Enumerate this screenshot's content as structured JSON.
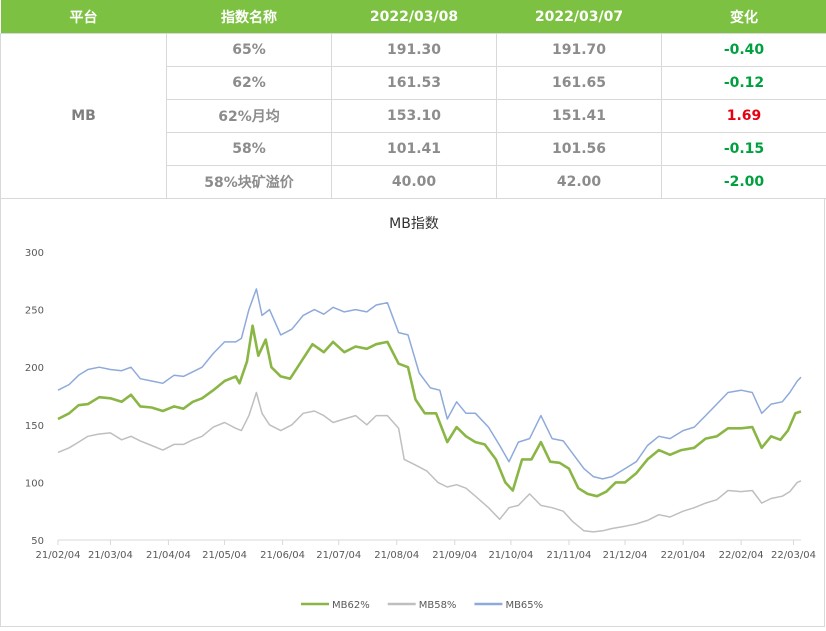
{
  "table": {
    "headers": [
      "平台",
      "指数名称",
      "2022/03/08",
      "2022/03/07",
      "变化"
    ],
    "platform": "MB",
    "rows": [
      {
        "name": "65%",
        "v1": "191.30",
        "v2": "191.70",
        "change": "-0.40",
        "sign": "neg"
      },
      {
        "name": "62%",
        "v1": "161.53",
        "v2": "161.65",
        "change": "-0.12",
        "sign": "neg"
      },
      {
        "name": "62%月均",
        "v1": "153.10",
        "v2": "151.41",
        "change": "1.69",
        "sign": "pos"
      },
      {
        "name": "58%",
        "v1": "101.41",
        "v2": "101.56",
        "change": "-0.15",
        "sign": "neg"
      },
      {
        "name": "58%块矿溢价",
        "v1": "40.00",
        "v2": "42.00",
        "change": "-2.00",
        "sign": "neg"
      }
    ]
  },
  "chart_data": {
    "type": "line",
    "title": "MB指数",
    "xlabel": "",
    "ylabel": "",
    "ylim": [
      50,
      300
    ],
    "yticks": [
      50,
      100,
      150,
      200,
      250,
      300
    ],
    "xrange": [
      "2021-02-04",
      "2022-03-08"
    ],
    "xtick_labels": [
      "21/02/04",
      "21/03/04",
      "21/04/04",
      "21/05/04",
      "21/06/04",
      "21/07/04",
      "21/08/04",
      "21/09/04",
      "21/10/04",
      "21/11/04",
      "21/12/04",
      "22/01/04",
      "22/02/04",
      "22/03/04"
    ],
    "xtick_dates": [
      "2021-02-04",
      "2021-03-04",
      "2021-04-04",
      "2021-05-04",
      "2021-06-04",
      "2021-07-04",
      "2021-08-04",
      "2021-09-04",
      "2021-10-04",
      "2021-11-04",
      "2021-12-04",
      "2022-01-04",
      "2022-02-04",
      "2022-03-04"
    ],
    "grid": false,
    "legend_position": "bottom",
    "series": [
      {
        "name": "MB62%",
        "color": "#8ab646",
        "points": [
          [
            "2021-02-04",
            155
          ],
          [
            "2021-02-10",
            160
          ],
          [
            "2021-02-15",
            167
          ],
          [
            "2021-02-20",
            168
          ],
          [
            "2021-02-26",
            174
          ],
          [
            "2021-03-04",
            173
          ],
          [
            "2021-03-10",
            170
          ],
          [
            "2021-03-15",
            176
          ],
          [
            "2021-03-20",
            166
          ],
          [
            "2021-03-26",
            165
          ],
          [
            "2021-04-01",
            162
          ],
          [
            "2021-04-07",
            166
          ],
          [
            "2021-04-12",
            164
          ],
          [
            "2021-04-17",
            170
          ],
          [
            "2021-04-22",
            173
          ],
          [
            "2021-04-28",
            180
          ],
          [
            "2021-05-04",
            188
          ],
          [
            "2021-05-10",
            192
          ],
          [
            "2021-05-12",
            186
          ],
          [
            "2021-05-16",
            205
          ],
          [
            "2021-05-19",
            236
          ],
          [
            "2021-05-22",
            210
          ],
          [
            "2021-05-26",
            224
          ],
          [
            "2021-05-29",
            200
          ],
          [
            "2021-06-03",
            192
          ],
          [
            "2021-06-08",
            190
          ],
          [
            "2021-06-14",
            205
          ],
          [
            "2021-06-20",
            220
          ],
          [
            "2021-06-26",
            213
          ],
          [
            "2021-07-01",
            222
          ],
          [
            "2021-07-07",
            213
          ],
          [
            "2021-07-13",
            218
          ],
          [
            "2021-07-19",
            216
          ],
          [
            "2021-07-24",
            220
          ],
          [
            "2021-07-30",
            222
          ],
          [
            "2021-08-05",
            203
          ],
          [
            "2021-08-10",
            200
          ],
          [
            "2021-08-14",
            172
          ],
          [
            "2021-08-19",
            160
          ],
          [
            "2021-08-25",
            160
          ],
          [
            "2021-08-31",
            135
          ],
          [
            "2021-09-05",
            148
          ],
          [
            "2021-09-10",
            140
          ],
          [
            "2021-09-15",
            135
          ],
          [
            "2021-09-20",
            133
          ],
          [
            "2021-09-26",
            120
          ],
          [
            "2021-10-01",
            100
          ],
          [
            "2021-10-05",
            93
          ],
          [
            "2021-10-10",
            120
          ],
          [
            "2021-10-15",
            120
          ],
          [
            "2021-10-20",
            135
          ],
          [
            "2021-10-25",
            118
          ],
          [
            "2021-10-30",
            117
          ],
          [
            "2021-11-04",
            112
          ],
          [
            "2021-11-09",
            95
          ],
          [
            "2021-11-14",
            90
          ],
          [
            "2021-11-19",
            88
          ],
          [
            "2021-11-24",
            92
          ],
          [
            "2021-11-29",
            100
          ],
          [
            "2021-12-04",
            100
          ],
          [
            "2021-12-10",
            108
          ],
          [
            "2021-12-16",
            120
          ],
          [
            "2021-12-22",
            128
          ],
          [
            "2021-12-28",
            124
          ],
          [
            "2022-01-03",
            128
          ],
          [
            "2022-01-10",
            130
          ],
          [
            "2022-01-16",
            138
          ],
          [
            "2022-01-22",
            140
          ],
          [
            "2022-01-28",
            147
          ],
          [
            "2022-02-04",
            147
          ],
          [
            "2022-02-10",
            148
          ],
          [
            "2022-02-15",
            130
          ],
          [
            "2022-02-20",
            140
          ],
          [
            "2022-02-25",
            137
          ],
          [
            "2022-03-01",
            145
          ],
          [
            "2022-03-05",
            160
          ],
          [
            "2022-03-08",
            161.53
          ]
        ]
      },
      {
        "name": "MB58%",
        "color": "#bfbfbf",
        "points": [
          [
            "2021-02-04",
            126
          ],
          [
            "2021-02-10",
            130
          ],
          [
            "2021-02-15",
            135
          ],
          [
            "2021-02-20",
            140
          ],
          [
            "2021-02-26",
            142
          ],
          [
            "2021-03-04",
            143
          ],
          [
            "2021-03-10",
            137
          ],
          [
            "2021-03-15",
            140
          ],
          [
            "2021-03-20",
            136
          ],
          [
            "2021-03-26",
            132
          ],
          [
            "2021-04-01",
            128
          ],
          [
            "2021-04-07",
            133
          ],
          [
            "2021-04-12",
            133
          ],
          [
            "2021-04-17",
            137
          ],
          [
            "2021-04-22",
            140
          ],
          [
            "2021-04-28",
            148
          ],
          [
            "2021-05-04",
            152
          ],
          [
            "2021-05-10",
            147
          ],
          [
            "2021-05-13",
            145
          ],
          [
            "2021-05-17",
            158
          ],
          [
            "2021-05-21",
            178
          ],
          [
            "2021-05-24",
            160
          ],
          [
            "2021-05-28",
            150
          ],
          [
            "2021-06-03",
            145
          ],
          [
            "2021-06-09",
            150
          ],
          [
            "2021-06-15",
            160
          ],
          [
            "2021-06-21",
            162
          ],
          [
            "2021-06-26",
            158
          ],
          [
            "2021-07-01",
            152
          ],
          [
            "2021-07-07",
            155
          ],
          [
            "2021-07-13",
            158
          ],
          [
            "2021-07-19",
            150
          ],
          [
            "2021-07-24",
            158
          ],
          [
            "2021-07-30",
            158
          ],
          [
            "2021-08-05",
            147
          ],
          [
            "2021-08-08",
            120
          ],
          [
            "2021-08-14",
            115
          ],
          [
            "2021-08-20",
            110
          ],
          [
            "2021-08-26",
            100
          ],
          [
            "2021-08-31",
            96
          ],
          [
            "2021-09-05",
            98
          ],
          [
            "2021-09-10",
            95
          ],
          [
            "2021-09-15",
            88
          ],
          [
            "2021-09-22",
            78
          ],
          [
            "2021-09-28",
            68
          ],
          [
            "2021-10-03",
            78
          ],
          [
            "2021-10-08",
            80
          ],
          [
            "2021-10-14",
            90
          ],
          [
            "2021-10-20",
            80
          ],
          [
            "2021-10-26",
            78
          ],
          [
            "2021-11-01",
            75
          ],
          [
            "2021-11-06",
            66
          ],
          [
            "2021-11-12",
            58
          ],
          [
            "2021-11-17",
            57
          ],
          [
            "2021-11-22",
            58
          ],
          [
            "2021-11-27",
            60
          ],
          [
            "2021-12-04",
            62
          ],
          [
            "2021-12-10",
            64
          ],
          [
            "2021-12-16",
            67
          ],
          [
            "2021-12-22",
            72
          ],
          [
            "2021-12-28",
            70
          ],
          [
            "2022-01-04",
            75
          ],
          [
            "2022-01-10",
            78
          ],
          [
            "2022-01-16",
            82
          ],
          [
            "2022-01-22",
            85
          ],
          [
            "2022-01-28",
            93
          ],
          [
            "2022-02-04",
            92
          ],
          [
            "2022-02-10",
            93
          ],
          [
            "2022-02-15",
            82
          ],
          [
            "2022-02-20",
            86
          ],
          [
            "2022-02-26",
            88
          ],
          [
            "2022-03-02",
            92
          ],
          [
            "2022-03-06",
            100
          ],
          [
            "2022-03-08",
            101.41
          ]
        ]
      },
      {
        "name": "MB65%",
        "color": "#8eaadb",
        "points": [
          [
            "2021-02-04",
            180
          ],
          [
            "2021-02-10",
            185
          ],
          [
            "2021-02-15",
            193
          ],
          [
            "2021-02-20",
            198
          ],
          [
            "2021-02-26",
            200
          ],
          [
            "2021-03-04",
            198
          ],
          [
            "2021-03-10",
            197
          ],
          [
            "2021-03-15",
            200
          ],
          [
            "2021-03-20",
            190
          ],
          [
            "2021-03-26",
            188
          ],
          [
            "2021-04-01",
            186
          ],
          [
            "2021-04-07",
            193
          ],
          [
            "2021-04-12",
            192
          ],
          [
            "2021-04-17",
            196
          ],
          [
            "2021-04-22",
            200
          ],
          [
            "2021-04-28",
            212
          ],
          [
            "2021-05-04",
            222
          ],
          [
            "2021-05-10",
            222
          ],
          [
            "2021-05-13",
            225
          ],
          [
            "2021-05-17",
            250
          ],
          [
            "2021-05-21",
            268
          ],
          [
            "2021-05-24",
            245
          ],
          [
            "2021-05-28",
            250
          ],
          [
            "2021-06-03",
            228
          ],
          [
            "2021-06-09",
            233
          ],
          [
            "2021-06-15",
            245
          ],
          [
            "2021-06-21",
            250
          ],
          [
            "2021-06-26",
            246
          ],
          [
            "2021-07-01",
            252
          ],
          [
            "2021-07-07",
            248
          ],
          [
            "2021-07-13",
            250
          ],
          [
            "2021-07-19",
            248
          ],
          [
            "2021-07-24",
            254
          ],
          [
            "2021-07-30",
            256
          ],
          [
            "2021-08-05",
            230
          ],
          [
            "2021-08-10",
            228
          ],
          [
            "2021-08-16",
            195
          ],
          [
            "2021-08-22",
            182
          ],
          [
            "2021-08-27",
            180
          ],
          [
            "2021-08-31",
            155
          ],
          [
            "2021-09-05",
            170
          ],
          [
            "2021-09-10",
            160
          ],
          [
            "2021-09-15",
            160
          ],
          [
            "2021-09-22",
            148
          ],
          [
            "2021-09-28",
            132
          ],
          [
            "2021-10-03",
            118
          ],
          [
            "2021-10-08",
            135
          ],
          [
            "2021-10-14",
            138
          ],
          [
            "2021-10-20",
            158
          ],
          [
            "2021-10-26",
            138
          ],
          [
            "2021-11-01",
            136
          ],
          [
            "2021-11-06",
            125
          ],
          [
            "2021-11-12",
            112
          ],
          [
            "2021-11-17",
            105
          ],
          [
            "2021-11-22",
            103
          ],
          [
            "2021-11-27",
            105
          ],
          [
            "2021-12-04",
            112
          ],
          [
            "2021-12-10",
            118
          ],
          [
            "2021-12-16",
            132
          ],
          [
            "2021-12-22",
            140
          ],
          [
            "2021-12-28",
            138
          ],
          [
            "2022-01-04",
            145
          ],
          [
            "2022-01-10",
            148
          ],
          [
            "2022-01-16",
            158
          ],
          [
            "2022-01-22",
            168
          ],
          [
            "2022-01-28",
            178
          ],
          [
            "2022-02-04",
            180
          ],
          [
            "2022-02-10",
            178
          ],
          [
            "2022-02-15",
            160
          ],
          [
            "2022-02-20",
            168
          ],
          [
            "2022-02-26",
            170
          ],
          [
            "2022-03-02",
            178
          ],
          [
            "2022-03-06",
            188
          ],
          [
            "2022-03-08",
            191.3
          ]
        ]
      }
    ]
  }
}
